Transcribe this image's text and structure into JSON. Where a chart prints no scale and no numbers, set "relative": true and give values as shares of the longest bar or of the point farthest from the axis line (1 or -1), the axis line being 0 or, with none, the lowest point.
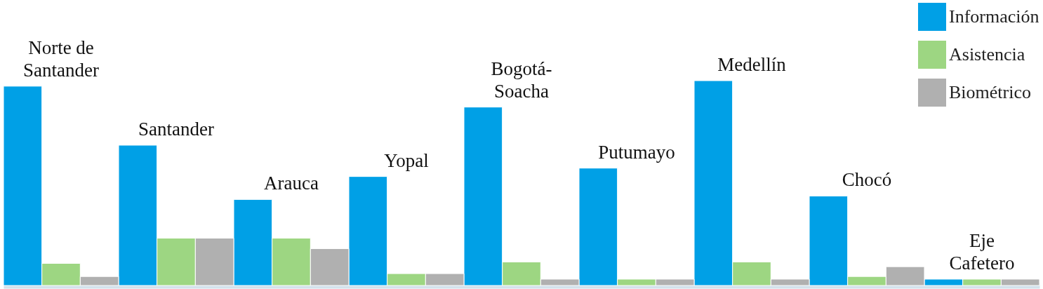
{
  "chart_data": {
    "type": "bar",
    "relative": true,
    "legend": "top right",
    "categories": [
      "Norte de Santander",
      "Santander",
      "Arauca",
      "Yopal",
      "Bogotá-Soacha",
      "Putumayo",
      "Medellín",
      "Chocó",
      "Eje Cafetero"
    ],
    "series": [
      {
        "name": "Información",
        "color": "#00a0e6",
        "values": [
          0.973,
          0.685,
          0.42,
          0.532,
          0.871,
          0.573,
          1,
          0.437,
          0.031
        ]
      },
      {
        "name": "Asistencia",
        "color": "#9dd682",
        "values": [
          0.108,
          0.231,
          0.231,
          0.058,
          0.115,
          0.031,
          0.115,
          0.044,
          0.031
        ]
      },
      {
        "name": "Biométrico",
        "color": "#b0b0b0",
        "values": [
          0.044,
          0.231,
          0.18,
          0.058,
          0.031,
          0.031,
          0.031,
          0.092,
          0.031
        ]
      }
    ]
  }
}
